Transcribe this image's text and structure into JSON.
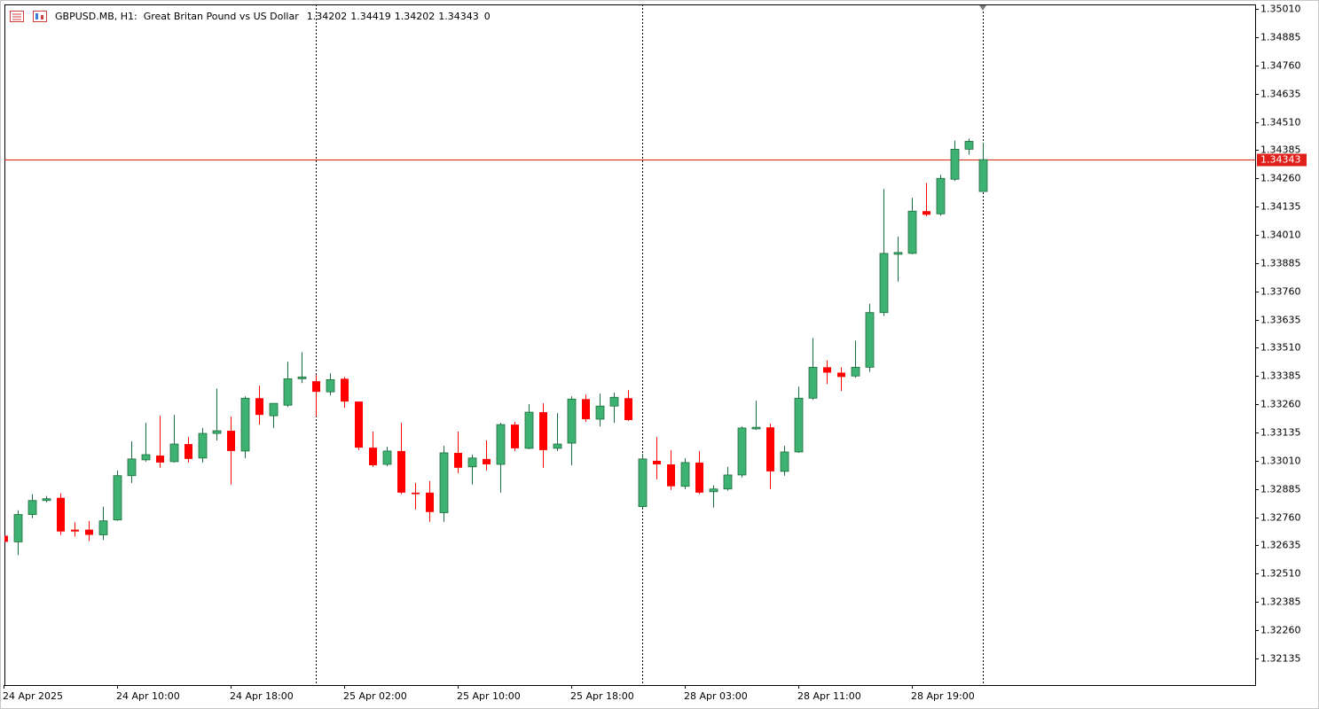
{
  "chart_data": {
    "type": "candlestick",
    "title": "GBPUSD.MB, H1:  Great Britan Pound vs US Dollar",
    "last_volume": 0,
    "up_color": "#3cb371",
    "down_color": "#ff0000",
    "price_line_color": "#e0201b",
    "categories": [
      "24 Apr 2025",
      null,
      null,
      null,
      null,
      null,
      null,
      null,
      "24 Apr 10:00",
      null,
      null,
      null,
      null,
      null,
      null,
      null,
      "24 Apr 18:00",
      null,
      null,
      null,
      null,
      null,
      null,
      null,
      "25 Apr 02:00",
      null,
      null,
      null,
      null,
      null,
      null,
      null,
      "25 Apr 10:00",
      null,
      null,
      null,
      null,
      null,
      null,
      null,
      "25 Apr 18:00",
      null,
      null,
      null,
      null,
      null,
      null,
      null,
      "28 Apr 03:00",
      null,
      null,
      null,
      null,
      null,
      null,
      null,
      "28 Apr 11:00",
      null,
      null,
      null,
      null,
      null,
      null,
      null,
      "28 Apr 19:00",
      null,
      null,
      null,
      null,
      null
    ],
    "open": [
      1.32678,
      1.32651,
      1.32772,
      1.32834,
      1.32846,
      1.32705,
      1.32705,
      1.32682,
      1.32748,
      1.32944,
      1.33014,
      1.33033,
      1.33006,
      1.33084,
      1.33022,
      1.33131,
      1.33143,
      1.33053,
      1.33287,
      1.33209,
      1.33256,
      1.33373,
      1.33362,
      1.33315,
      1.33373,
      1.33272,
      1.33068,
      1.32994,
      1.33053,
      1.32869,
      1.32869,
      1.3278,
      1.33045,
      1.32983,
      1.33018,
      1.32994,
      1.3317,
      1.33065,
      1.33225,
      1.33065,
      1.33088,
      1.33283,
      1.33194,
      1.33252,
      1.33287,
      1.32807,
      1.3301,
      1.32994,
      1.32897,
      1.33002,
      1.32873,
      1.32885,
      1.32947,
      1.33151,
      1.33158,
      1.32963,
      1.33049,
      1.33287,
      1.33424,
      1.334,
      1.33385,
      1.33424,
      1.33666,
      1.33924,
      1.33928,
      1.34115,
      1.34103,
      1.34256,
      1.34389,
      1.34202
    ],
    "high": [
      1.32686,
      1.32791,
      1.32862,
      1.32854,
      1.32866,
      1.32737,
      1.32744,
      1.32807,
      1.32967,
      1.33096,
      1.33178,
      1.33209,
      1.33213,
      1.33115,
      1.33155,
      1.3333,
      1.33205,
      1.33295,
      1.33342,
      1.33264,
      1.33448,
      1.3349,
      1.33389,
      1.33397,
      1.33381,
      1.33272,
      1.33139,
      1.33072,
      1.33178,
      1.32912,
      1.3292,
      1.33076,
      1.33139,
      1.33037,
      1.331,
      1.33178,
      1.33182,
      1.3326,
      1.33264,
      1.33221,
      1.33295,
      1.33303,
      1.33307,
      1.33311,
      1.33322,
      1.33041,
      1.33115,
      1.33057,
      1.33022,
      1.33053,
      1.32901,
      1.32983,
      1.33162,
      1.33276,
      1.33174,
      1.33076,
      1.33338,
      1.33553,
      1.33455,
      1.33424,
      1.33541,
      1.33705,
      1.34213,
      1.34002,
      1.34174,
      1.3424,
      1.34276,
      1.34428,
      1.34436,
      1.34419
    ],
    "low": [
      1.32643,
      1.32592,
      1.32756,
      1.32826,
      1.32682,
      1.32674,
      1.32655,
      1.32659,
      1.32744,
      1.32912,
      1.33006,
      1.32979,
      1.33002,
      1.33002,
      1.33002,
      1.331,
      1.32905,
      1.33022,
      1.3317,
      1.33155,
      1.33248,
      1.33354,
      1.33205,
      1.33299,
      1.33244,
      1.33057,
      1.32983,
      1.32986,
      1.32862,
      1.32795,
      1.3274,
      1.3274,
      1.32955,
      1.32905,
      1.32967,
      1.32869,
      1.33053,
      1.33061,
      1.32979,
      1.33053,
      1.3299,
      1.33182,
      1.33162,
      1.33178,
      1.33186,
      1.32799,
      1.32928,
      1.32881,
      1.32885,
      1.32862,
      1.32803,
      1.32877,
      1.32936,
      1.33147,
      1.32885,
      1.32944,
      1.33045,
      1.3328,
      1.3335,
      1.33319,
      1.33377,
      1.33404,
      1.33651,
      1.33803,
      1.33924,
      1.34092,
      1.34095,
      1.34248,
      1.34365,
      1.34202
    ],
    "close": [
      1.32651,
      1.32772,
      1.32834,
      1.32842,
      1.32697,
      1.32697,
      1.32682,
      1.32744,
      1.32944,
      1.33018,
      1.33037,
      1.33002,
      1.33084,
      1.33018,
      1.33131,
      1.33143,
      1.33053,
      1.33287,
      1.33213,
      1.33264,
      1.33373,
      1.33381,
      1.33315,
      1.33369,
      1.33272,
      1.33068,
      1.3299,
      1.33053,
      1.32869,
      1.32862,
      1.32783,
      1.33045,
      1.32979,
      1.33022,
      1.32994,
      1.3317,
      1.33065,
      1.33225,
      1.33057,
      1.33084,
      1.33283,
      1.33194,
      1.33252,
      1.33291,
      1.3319,
      1.33018,
      1.32994,
      1.32897,
      1.33002,
      1.32869,
      1.32885,
      1.32947,
      1.33155,
      1.33158,
      1.32963,
      1.33049,
      1.33287,
      1.33424,
      1.334,
      1.33381,
      1.33424,
      1.33666,
      1.33928,
      1.33932,
      1.34115,
      1.34099,
      1.3426,
      1.34389,
      1.34424,
      1.34343
    ],
    "ylim": [
      1.32017,
      1.3503
    ],
    "yticks": [
      {
        "value": 1.3501,
        "label": "1.35010"
      },
      1.34885,
      {
        "value": 1.3476,
        "label": "1.34760"
      },
      1.34635,
      {
        "value": 1.3451,
        "label": "1.34510"
      },
      1.34385,
      {
        "value": 1.3426,
        "label": "1.34260"
      },
      1.34135,
      {
        "value": 1.3401,
        "label": "1.34010"
      },
      1.33885,
      {
        "value": 1.3376,
        "label": "1.33760"
      },
      1.33635,
      {
        "value": 1.3351,
        "label": "1.33510"
      },
      1.33385,
      {
        "value": 1.3326,
        "label": "1.33260"
      },
      1.33135,
      {
        "value": 1.3301,
        "label": "1.33010"
      },
      1.32885,
      {
        "value": 1.3276,
        "label": "1.32760"
      },
      1.32635,
      {
        "value": 1.3251,
        "label": "1.32510"
      },
      1.32385,
      {
        "value": 1.3226,
        "label": "1.32260"
      },
      1.32135
    ]
  }
}
